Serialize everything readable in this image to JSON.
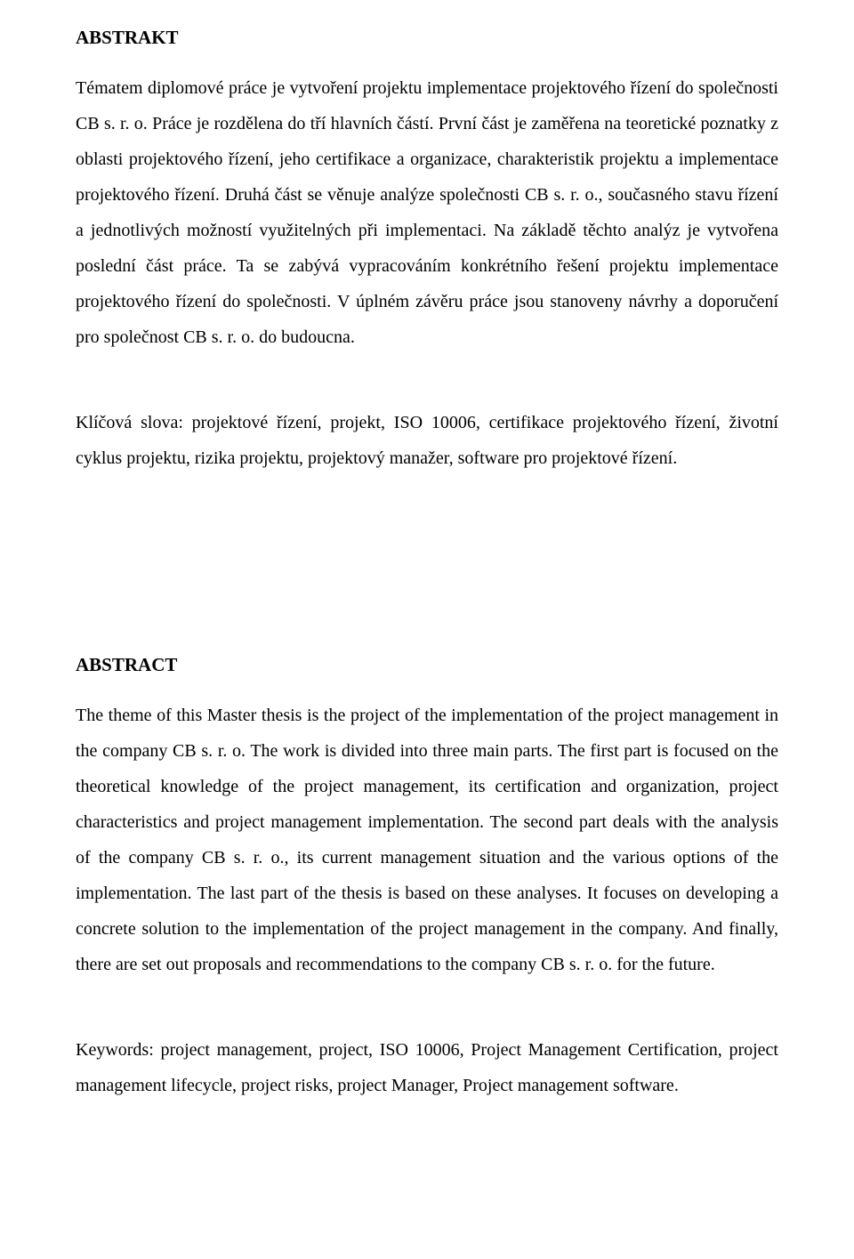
{
  "abstrakt": {
    "heading": "ABSTRAKT",
    "body": "Tématem diplomové práce je vytvoření projektu implementace projektového řízení do společnosti CB s. r. o. Práce je rozdělena do tří hlavních částí. První část je zaměřena na teoretické poznatky z oblasti projektového řízení, jeho certifikace a organizace, charakteristik projektu a implementace projektového řízení. Druhá část se věnuje analýze společnosti CB s. r. o., současného stavu řízení a jednotlivých možností využitelných při implementaci. Na základě těchto analýz je vytvořena poslední část práce. Ta se zabývá vypracováním konkrétního řešení projektu implementace projektového řízení do společnosti. V úplném závěru práce jsou stanoveny návrhy a doporučení pro společnost CB s. r. o. do budoucna.",
    "keywords": "Klíčová slova: projektové řízení, projekt, ISO 10006, certifikace projektového řízení, životní cyklus projektu, rizika projektu, projektový manažer, software pro projektové řízení."
  },
  "abstract": {
    "heading": "ABSTRACT",
    "body": "The theme of this Master thesis is the project of the implementation of the project management in the company CB s. r. o. The work is divided into three main parts. The first part is focused on the theoretical knowledge of the project management, its certification and organization, project characteristics and project management implementation. The second part deals with the analysis of the company CB s. r. o., its current management situation and the various options of the implementation. The last part of the thesis is based on these analyses. It focuses on developing a concrete solution to the implementation of the project management in the company. And finally, there are set out proposals and recommendations to the company CB s. r. o. for the future.",
    "keywords": "Keywords: project management, project, ISO 10006, Project Management Certification, project management lifecycle, project risks, project Manager, Project management software."
  }
}
